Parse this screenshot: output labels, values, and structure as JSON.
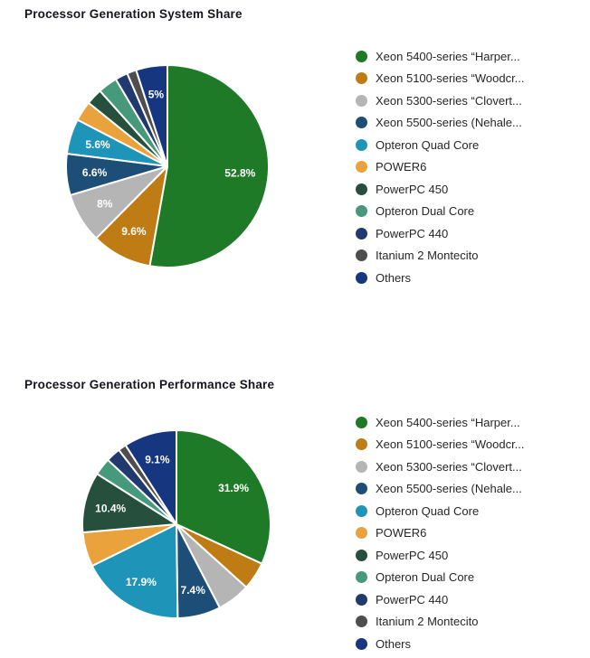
{
  "chart_data": [
    {
      "type": "pie",
      "title": "Processor Generation System Share",
      "legend_position": "right",
      "labels": [
        "Xeon 5400-series “Harper...",
        "Xeon 5100-series “Woodcr...",
        "Xeon 5300-series “Clovert...",
        "Xeon 5500-series (Nehale...",
        "Opteron Quad Core",
        "POWER6",
        "PowerPC 450",
        "Opteron Dual Core",
        "PowerPC 440",
        "Itanium 2 Montecito",
        "Others"
      ],
      "values": [
        52.8,
        9.6,
        8,
        6.6,
        5.6,
        3.2,
        2.6,
        3.1,
        2.0,
        1.5,
        5.0
      ],
      "value_labels": [
        "52.8%",
        "9.6%",
        "8%",
        "6.6%",
        "5.6%",
        null,
        null,
        null,
        null,
        null,
        "5%"
      ],
      "colors": [
        "#1f7a28",
        "#bf7b14",
        "#b5b5b5",
        "#1d4e77",
        "#1e95b8",
        "#e9a23c",
        "#274f3e",
        "#46997a",
        "#203a6f",
        "#4e4e4e",
        "#16377f"
      ]
    },
    {
      "type": "pie",
      "title": "Processor Generation Performance Share",
      "legend_position": "right",
      "labels": [
        "Xeon 5400-series “Harper...",
        "Xeon 5100-series “Woodcr...",
        "Xeon 5300-series “Clovert...",
        "Xeon 5500-series (Nehale...",
        "Opteron Quad Core",
        "POWER6",
        "PowerPC 450",
        "Opteron Dual Core",
        "PowerPC 440",
        "Itanium 2 Montecito",
        "Others"
      ],
      "values": [
        31.9,
        4.8,
        5.7,
        7.4,
        17.9,
        5.9,
        10.4,
        3.0,
        2.5,
        1.4,
        9.1
      ],
      "value_labels": [
        "31.9%",
        null,
        null,
        "7.4%",
        "17.9%",
        null,
        "10.4%",
        null,
        null,
        null,
        "9.1%"
      ],
      "colors": [
        "#1f7a28",
        "#bf7b14",
        "#b5b5b5",
        "#1d4e77",
        "#1e95b8",
        "#e9a23c",
        "#274f3e",
        "#46997a",
        "#203a6f",
        "#4e4e4e",
        "#16377f"
      ]
    }
  ]
}
